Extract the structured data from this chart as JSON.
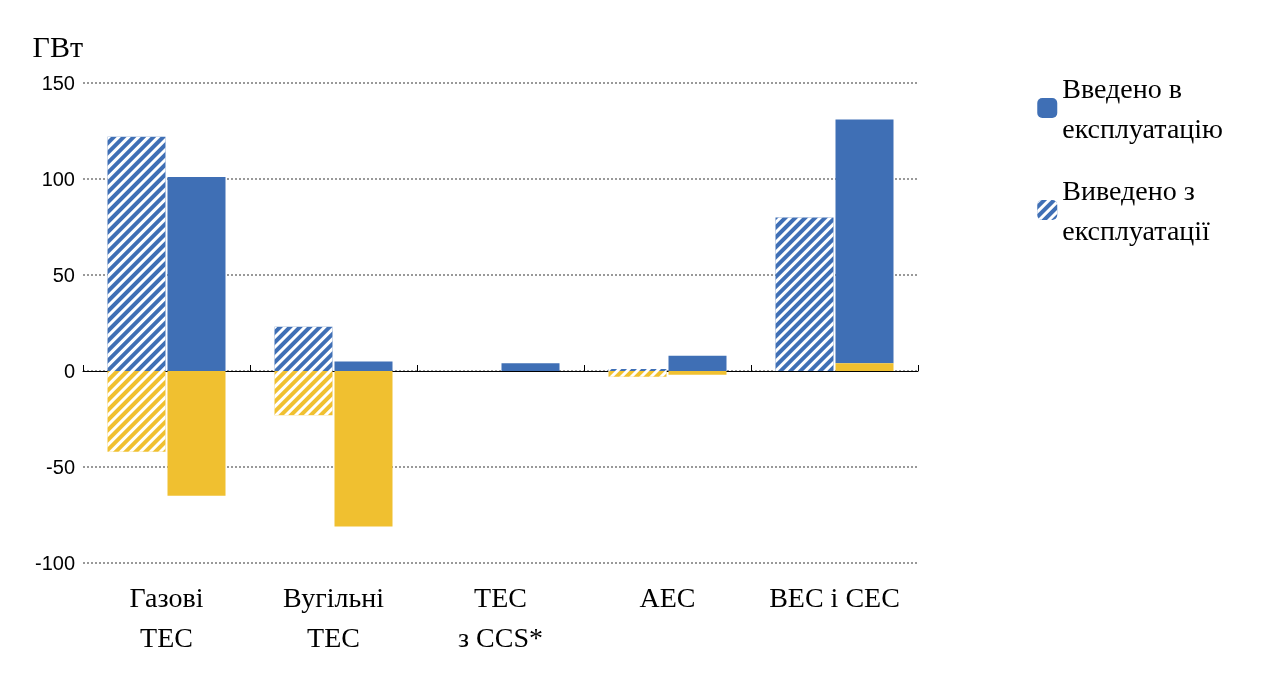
{
  "chart_data": {
    "type": "bar",
    "ylabel": "ГВт",
    "categories": [
      "Газові\nТЕС",
      "Вугільні\nТЕС",
      "ТЕС\nз CCS*",
      "АЕС",
      "ВЕС і СЕС"
    ],
    "ylim": [
      -100,
      150
    ],
    "yticks": [
      -100,
      -50,
      0,
      50,
      100,
      150
    ],
    "grid": "y",
    "legend": "top right",
    "series": [
      {
        "name": "Виведено з експлуатації",
        "color": "#3f6fb5",
        "values": [
          122,
          23,
          null,
          1,
          80
        ]
      },
      {
        "color": "#f0c030",
        "values": [
          -42,
          -23,
          null,
          -3,
          null
        ]
      },
      {
        "name": "Введено в експлуатацію",
        "color": "#3f6fb5",
        "values": [
          101,
          5,
          4,
          8,
          127
        ],
        "base": [
          0,
          0,
          0,
          0,
          4
        ]
      },
      {
        "color": "#f0c030",
        "values": [
          -65,
          -81,
          null,
          -2,
          4
        ]
      }
    ]
  }
}
